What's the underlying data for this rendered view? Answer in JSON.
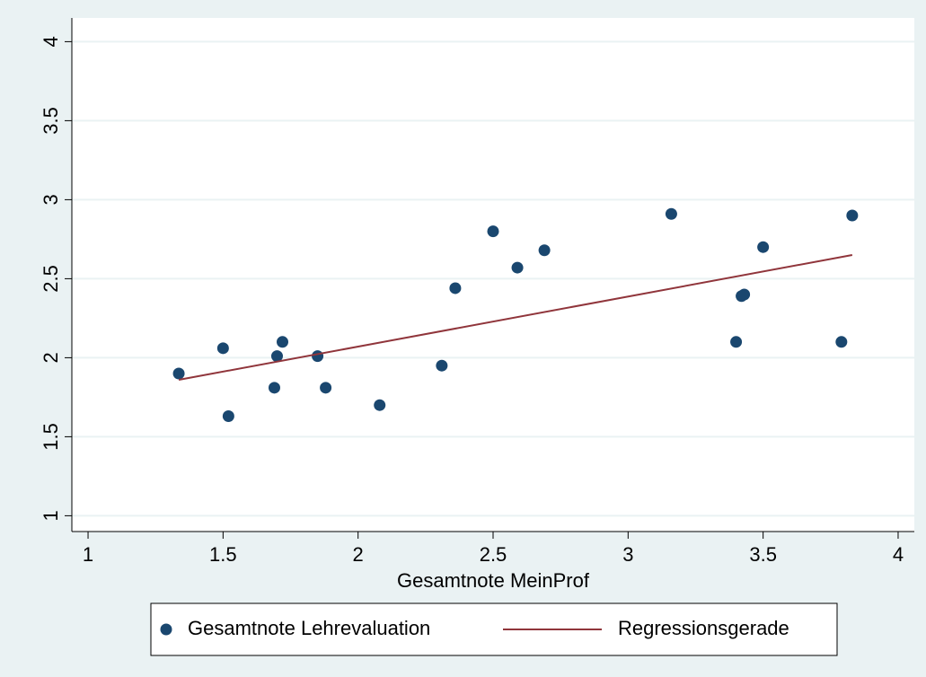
{
  "chart_data": {
    "type": "scatter",
    "x_label": "Gesamtnote MeinProf",
    "xlim": [
      0.94,
      4.06
    ],
    "xticks": [
      1,
      1.5,
      2,
      2.5,
      3,
      3.5,
      4
    ],
    "ylim": [
      0.9,
      4.15
    ],
    "yticks": [
      1,
      1.5,
      2,
      2.5,
      3,
      3.5,
      4
    ],
    "grid": true,
    "series": [
      {
        "name": "Gesamtnote Lehrevaluation",
        "type": "scatter",
        "color": "#1a476f",
        "x": [
          1.336,
          1.5,
          1.52,
          1.7,
          1.72,
          1.69,
          1.85,
          1.88,
          2.08,
          2.31,
          2.36,
          2.5,
          2.59,
          2.69,
          3.16,
          3.4,
          3.42,
          3.43,
          3.5,
          3.79,
          3.83
        ],
        "values": [
          1.9,
          2.06,
          1.63,
          2.01,
          2.1,
          1.81,
          2.01,
          1.81,
          1.7,
          1.95,
          2.44,
          2.8,
          2.57,
          2.68,
          2.91,
          2.1,
          2.39,
          2.4,
          2.7,
          2.1,
          2.9
        ]
      },
      {
        "name": "Regressionsgerade",
        "type": "line",
        "color": "#90353b",
        "x": [
          1.336,
          3.83
        ],
        "values": [
          1.86,
          2.65
        ]
      }
    ]
  }
}
